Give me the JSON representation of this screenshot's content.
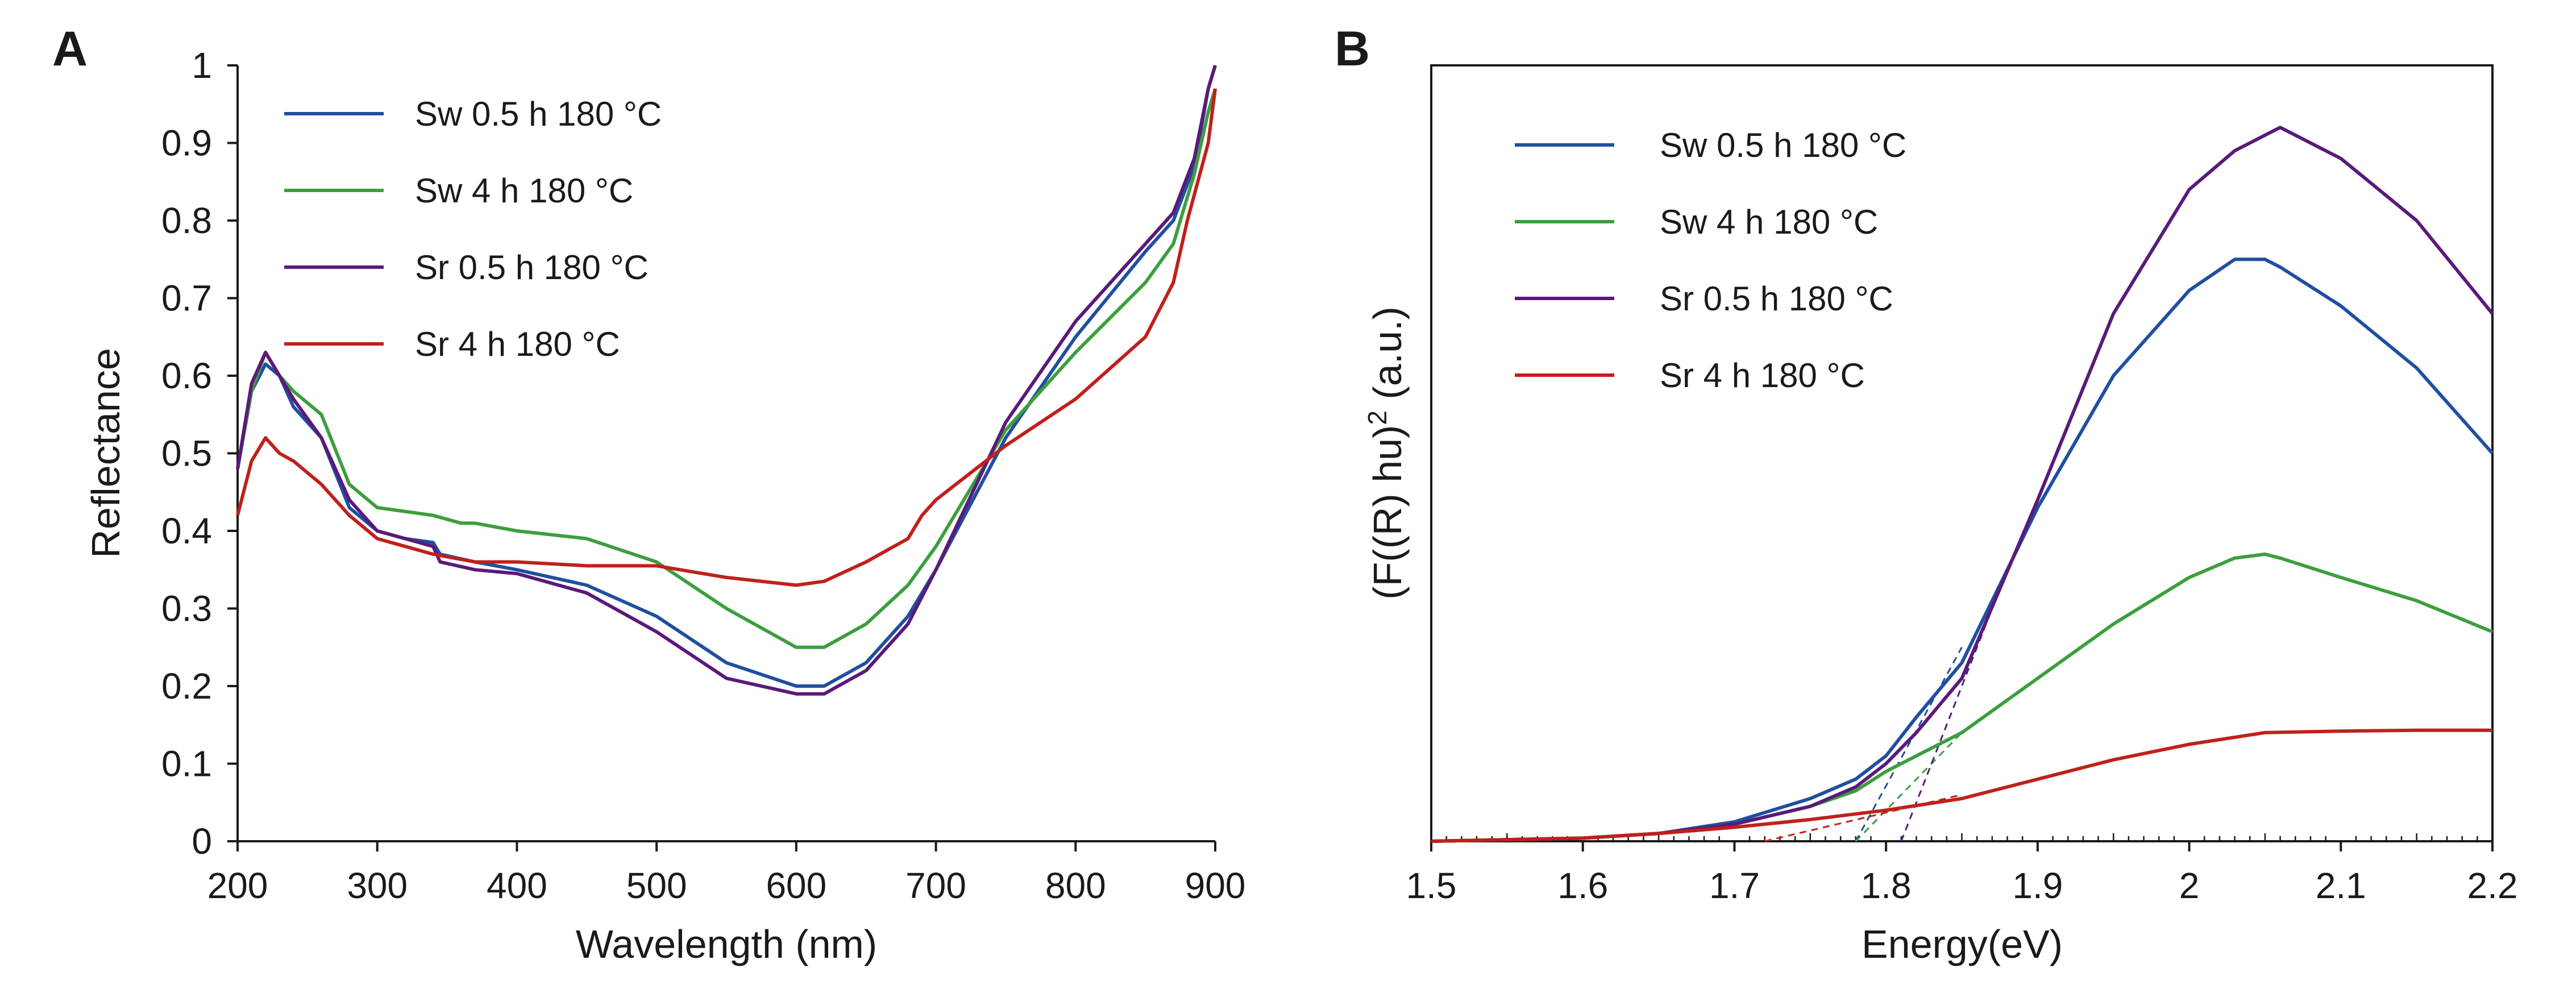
{
  "chart_data": [
    {
      "panel": "A",
      "type": "line",
      "title": "",
      "xlabel": "Wavelength (nm)",
      "ylabel": "Reflectance",
      "xlim": [
        200,
        900
      ],
      "ylim": [
        0,
        1
      ],
      "xticks": [
        200,
        300,
        400,
        500,
        600,
        700,
        800,
        900
      ],
      "yticks": [
        0,
        0.1,
        0.2,
        0.3,
        0.4,
        0.5,
        0.6,
        0.7,
        0.8,
        0.9,
        1
      ],
      "ytick_labels": [
        "0",
        "0.1",
        "0.2",
        "0.3",
        "0.4",
        "0.5",
        "0.6",
        "0.7",
        "0.8",
        "0.9",
        "1"
      ],
      "legend_position": "top-left",
      "series": [
        {
          "name": "Sw 0.5 h 180 °C",
          "color": "#1f4fa0",
          "x": [
            200,
            210,
            220,
            230,
            240,
            260,
            280,
            300,
            320,
            340,
            345,
            370,
            400,
            450,
            500,
            550,
            600,
            620,
            650,
            680,
            700,
            750,
            800,
            850,
            870,
            885,
            895,
            900
          ],
          "y": [
            0.48,
            0.58,
            0.615,
            0.6,
            0.56,
            0.52,
            0.43,
            0.4,
            0.39,
            0.385,
            0.37,
            0.36,
            0.35,
            0.33,
            0.29,
            0.23,
            0.2,
            0.2,
            0.23,
            0.29,
            0.35,
            0.52,
            0.65,
            0.76,
            0.8,
            0.87,
            0.97,
            1.0
          ]
        },
        {
          "name": "Sw 4 h 180 °C",
          "color": "#3d9e3d",
          "x": [
            200,
            210,
            220,
            230,
            240,
            260,
            280,
            300,
            340,
            360,
            370,
            400,
            450,
            500,
            550,
            600,
            620,
            650,
            680,
            700,
            750,
            800,
            850,
            870,
            885,
            895,
            900
          ],
          "y": [
            0.48,
            0.58,
            0.63,
            0.6,
            0.58,
            0.55,
            0.46,
            0.43,
            0.42,
            0.41,
            0.41,
            0.4,
            0.39,
            0.36,
            0.3,
            0.25,
            0.25,
            0.28,
            0.33,
            0.38,
            0.53,
            0.63,
            0.72,
            0.77,
            0.86,
            0.94,
            0.97
          ]
        },
        {
          "name": "Sr 0.5 h 180 °C",
          "color": "#5a1a7a",
          "x": [
            200,
            210,
            220,
            230,
            240,
            260,
            280,
            300,
            320,
            340,
            345,
            370,
            400,
            450,
            500,
            550,
            600,
            620,
            650,
            680,
            700,
            750,
            800,
            850,
            870,
            885,
            895,
            900
          ],
          "y": [
            0.48,
            0.59,
            0.63,
            0.6,
            0.57,
            0.52,
            0.44,
            0.4,
            0.39,
            0.38,
            0.36,
            0.35,
            0.345,
            0.32,
            0.27,
            0.21,
            0.19,
            0.19,
            0.22,
            0.28,
            0.35,
            0.54,
            0.67,
            0.77,
            0.81,
            0.88,
            0.97,
            1.0
          ]
        },
        {
          "name": "Sr 4 h 180 °C",
          "color": "#c0201c",
          "x": [
            200,
            210,
            220,
            230,
            240,
            260,
            280,
            300,
            320,
            340,
            370,
            400,
            450,
            500,
            550,
            600,
            620,
            650,
            680,
            690,
            700,
            750,
            800,
            850,
            870,
            880,
            895,
            900
          ],
          "y": [
            0.42,
            0.49,
            0.52,
            0.5,
            0.49,
            0.46,
            0.42,
            0.39,
            0.38,
            0.37,
            0.36,
            0.36,
            0.355,
            0.355,
            0.34,
            0.33,
            0.335,
            0.36,
            0.39,
            0.42,
            0.44,
            0.51,
            0.57,
            0.65,
            0.72,
            0.8,
            0.9,
            0.97
          ]
        }
      ]
    },
    {
      "panel": "B",
      "type": "line",
      "title": "",
      "xlabel": "Energy(eV)",
      "ylabel": "(F((R) hu)² (a.u.)",
      "ylabel_parts": [
        "(F((R) hu)",
        "2",
        " (a.u.)"
      ],
      "xlim": [
        1.5,
        2.2
      ],
      "ylim": [
        0,
        1
      ],
      "xticks": [
        1.5,
        1.6,
        1.7,
        1.8,
        1.9,
        2,
        2.1,
        2.2
      ],
      "yticks": [],
      "legend_position": "top-left",
      "series": [
        {
          "name": "Sw 0.5 h 180 °C",
          "color": "#1f4fa0",
          "x": [
            1.5,
            1.6,
            1.65,
            1.7,
            1.75,
            1.78,
            1.8,
            1.82,
            1.85,
            1.9,
            1.95,
            2.0,
            2.03,
            2.05,
            2.06,
            2.1,
            2.15,
            2.2
          ],
          "y": [
            0.0,
            0.004,
            0.01,
            0.025,
            0.055,
            0.08,
            0.11,
            0.16,
            0.23,
            0.43,
            0.6,
            0.71,
            0.75,
            0.75,
            0.74,
            0.69,
            0.61,
            0.5
          ]
        },
        {
          "name": "Sw 4 h 180 °C",
          "color": "#3d9e3d",
          "x": [
            1.5,
            1.6,
            1.65,
            1.7,
            1.75,
            1.78,
            1.8,
            1.82,
            1.85,
            1.9,
            1.95,
            2.0,
            2.03,
            2.05,
            2.06,
            2.1,
            2.15,
            2.2
          ],
          "y": [
            0.0,
            0.004,
            0.01,
            0.022,
            0.045,
            0.065,
            0.09,
            0.11,
            0.14,
            0.21,
            0.28,
            0.34,
            0.365,
            0.37,
            0.365,
            0.34,
            0.31,
            0.27
          ]
        },
        {
          "name": "Sr 0.5 h 180 °C",
          "color": "#5a1a7a",
          "x": [
            1.5,
            1.6,
            1.65,
            1.7,
            1.75,
            1.78,
            1.8,
            1.82,
            1.85,
            1.9,
            1.95,
            2.0,
            2.03,
            2.05,
            2.06,
            2.1,
            2.15,
            2.2
          ],
          "y": [
            0.0,
            0.004,
            0.01,
            0.022,
            0.045,
            0.07,
            0.1,
            0.14,
            0.21,
            0.44,
            0.68,
            0.84,
            0.89,
            0.91,
            0.92,
            0.88,
            0.8,
            0.68
          ]
        },
        {
          "name": "Sr 4 h 180 °C",
          "color": "#c0201c",
          "x": [
            1.5,
            1.6,
            1.65,
            1.7,
            1.75,
            1.8,
            1.85,
            1.9,
            1.95,
            2.0,
            2.05,
            2.1,
            2.15,
            2.2
          ],
          "y": [
            0.0,
            0.004,
            0.01,
            0.018,
            0.028,
            0.04,
            0.055,
            0.08,
            0.105,
            0.125,
            0.14,
            0.142,
            0.143,
            0.143
          ]
        }
      ],
      "tangent_lines": [
        {
          "color": "#1f4fa0",
          "x": [
            1.78,
            1.85
          ],
          "y": [
            0.0,
            0.25
          ]
        },
        {
          "color": "#3d9e3d",
          "x": [
            1.78,
            1.85
          ],
          "y": [
            0.0,
            0.14
          ]
        },
        {
          "color": "#5a1a7a",
          "x": [
            1.81,
            1.87
          ],
          "y": [
            0.0,
            0.3
          ]
        },
        {
          "color": "#c0201c",
          "x": [
            1.72,
            1.85
          ],
          "y": [
            0.0,
            0.06
          ]
        }
      ]
    }
  ]
}
